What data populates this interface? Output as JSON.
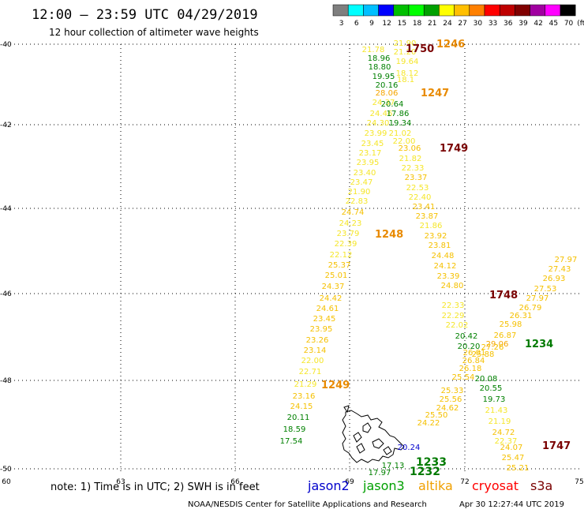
{
  "header": {
    "title": "12:00 – 23:59 UTC 04/29/2019",
    "subtitle": "12 hour collection of altimeter wave heights"
  },
  "colorbar": {
    "colors": [
      "#7f7f7f",
      "#00ffff",
      "#00bfff",
      "#0000ff",
      "#00bf00",
      "#00ff00",
      "#00a000",
      "#ffff00",
      "#ffbf00",
      "#ff8000",
      "#ff0000",
      "#bf0000",
      "#800000",
      "#a000a0",
      "#ff00ff",
      "#000000"
    ],
    "labels": [
      "3",
      "6",
      "9",
      "12",
      "15",
      "18",
      "21",
      "24",
      "27",
      "30",
      "33",
      "36",
      "39",
      "42",
      "45",
      "70"
    ],
    "unit": "(ft)"
  },
  "axes": {
    "lat_labels": [
      "-40",
      "-42",
      "-44",
      "-46",
      "-48",
      "-50"
    ],
    "lon_labels": [
      "60",
      "63",
      "66",
      "69",
      "72",
      "75"
    ]
  },
  "tracks": [
    {
      "id": "1246",
      "satellite": "altika",
      "color": "#f59a00",
      "label_color": "#e88a00",
      "points": [
        [
          "21.90",
          "#f5e62a"
        ],
        [
          "21.20",
          "#f5e62a"
        ],
        [
          "19.64",
          "#f5e62a"
        ],
        [
          "18.12",
          "#f5e62a"
        ],
        [
          "18.1",
          "#f5e62a"
        ]
      ]
    },
    {
      "id": "1750",
      "satellite": "cryosat",
      "color": "#7a0000",
      "points": []
    },
    {
      "id": "1247",
      "satellite": "altika",
      "color": "#e88a00",
      "points": [
        [
          "21.78",
          "#f5e62a"
        ],
        [
          "18.96",
          "#008000"
        ],
        [
          "18.80",
          "#008000"
        ],
        [
          "19.95",
          "#008000"
        ],
        [
          "20.16",
          "#008000"
        ],
        [
          "28.06",
          "#f5a500"
        ],
        [
          "24.37",
          "#f5e62a"
        ],
        [
          "24.46",
          "#f5e62a"
        ],
        [
          "24.30",
          "#f5e62a"
        ],
        [
          "23.99",
          "#f5e62a"
        ],
        [
          "23.45",
          "#f5e62a"
        ],
        [
          "23.17",
          "#f5e62a"
        ],
        [
          "23.95",
          "#f5e62a"
        ],
        [
          "23.40",
          "#f5e62a"
        ],
        [
          "23.47",
          "#f5e62a"
        ],
        [
          "21.90",
          "#f5e62a"
        ],
        [
          "22.83",
          "#f5e62a"
        ],
        [
          "24.74",
          "#f5c000"
        ],
        [
          "24.23",
          "#f5e62a"
        ],
        [
          "23.79",
          "#f5e62a"
        ],
        [
          "22.39",
          "#f5e62a"
        ],
        [
          "22.12",
          "#f5e62a"
        ],
        [
          "25.37",
          "#f5c000"
        ],
        [
          "25.01",
          "#f5c000"
        ],
        [
          "24.37",
          "#f5c000"
        ],
        [
          "24.42",
          "#f5c000"
        ],
        [
          "24.61",
          "#f5c000"
        ],
        [
          "23.45",
          "#f5c000"
        ],
        [
          "23.95",
          "#f5c000"
        ],
        [
          "23.26",
          "#f5c000"
        ],
        [
          "23.14",
          "#f5c000"
        ],
        [
          "22.00",
          "#f5e62a"
        ],
        [
          "22.71",
          "#f5e62a"
        ],
        [
          "21.29",
          "#f5e62a"
        ],
        [
          "23.16",
          "#f5c000"
        ],
        [
          "24.15",
          "#f5c000"
        ],
        [
          "20.11",
          "#008000"
        ],
        [
          "18.59",
          "#008000"
        ],
        [
          "17.54",
          "#008000"
        ]
      ]
    },
    {
      "id": "1248",
      "satellite": "altika",
      "color": "#e88a00",
      "points": []
    },
    {
      "id": "1249",
      "satellite": "altika",
      "color": "#e88a00",
      "points": []
    },
    {
      "id": "1749",
      "satellite": "cryosat",
      "color": "#7a0000",
      "points": [
        [
          "20.64",
          "#008000"
        ],
        [
          "17.86",
          "#008000"
        ],
        [
          "19.34",
          "#008000"
        ],
        [
          "21.02",
          "#f5e62a"
        ],
        [
          "22.00",
          "#f5e62a"
        ],
        [
          "23.06",
          "#f5c000"
        ],
        [
          "21.82",
          "#f5e62a"
        ],
        [
          "22.33",
          "#f5e62a"
        ],
        [
          "23.37",
          "#f5c000"
        ],
        [
          "22.53",
          "#f5e62a"
        ],
        [
          "22.40",
          "#f5e62a"
        ],
        [
          "23.41",
          "#f5c000"
        ],
        [
          "23.87",
          "#f5c000"
        ],
        [
          "21.86",
          "#f5e62a"
        ],
        [
          "23.92",
          "#f5c000"
        ],
        [
          "23.81",
          "#f5c000"
        ],
        [
          "24.48",
          "#f5c000"
        ],
        [
          "24.12",
          "#f5c000"
        ],
        [
          "23.39",
          "#f5c000"
        ],
        [
          "24.80",
          "#f5c000"
        ],
        [
          "22.33",
          "#f5e62a"
        ],
        [
          "22.29",
          "#f5e62a"
        ],
        [
          "22.02",
          "#f5e62a"
        ],
        [
          "20.42",
          "#008000"
        ],
        [
          "20.20",
          "#008000"
        ],
        [
          "26.01",
          "#f5c000"
        ],
        [
          "26.84",
          "#f5c000"
        ],
        [
          "26.18",
          "#f5c000"
        ],
        [
          "25.54",
          "#f5c000"
        ],
        [
          "25.33",
          "#f5c000"
        ],
        [
          "25.56",
          "#f5c000"
        ],
        [
          "24.62",
          "#f5c000"
        ],
        [
          "25.50",
          "#f5c000"
        ],
        [
          "24.22",
          "#f5c000"
        ]
      ]
    },
    {
      "id": "1748",
      "satellite": "cryosat",
      "color": "#7a0000",
      "points": []
    },
    {
      "id": "1234",
      "satellite": "jason3",
      "color": "#007a00",
      "points": [
        [
          "20.08",
          "#008000"
        ],
        [
          "20.55",
          "#008000"
        ],
        [
          "19.73",
          "#008000"
        ],
        [
          "21.43",
          "#f5e62a"
        ],
        [
          "21.19",
          "#f5e62a"
        ],
        [
          "24.72",
          "#f5c000"
        ],
        [
          "22.37",
          "#f5e62a"
        ],
        [
          "24.07",
          "#f5c000"
        ],
        [
          "25.47",
          "#f5c000"
        ],
        [
          "25.21",
          "#f5c000"
        ]
      ]
    },
    {
      "id": "1747",
      "satellite": "cryosat",
      "color": "#7a0000",
      "points": [
        [
          "27.97",
          "#f5c000"
        ],
        [
          "27.43",
          "#f5c000"
        ],
        [
          "26.93",
          "#f5c000"
        ],
        [
          "27.53",
          "#f5c000"
        ],
        [
          "27.97",
          "#f5c000"
        ],
        [
          "26.79",
          "#f5c000"
        ],
        [
          "26.31",
          "#f5c000"
        ],
        [
          "25.98",
          "#f5c000"
        ],
        [
          "26.87",
          "#f5c000"
        ],
        [
          "29.06",
          "#f5a500"
        ],
        [
          "27.26",
          "#f5c000"
        ],
        [
          "25.88",
          "#f5c000"
        ]
      ]
    },
    {
      "id": "1233",
      "satellite": "jason3",
      "color": "#007a00",
      "points": [
        [
          "20.24",
          "#0000cc"
        ],
        [
          "17.13",
          "#008000"
        ],
        [
          "17.97",
          "#008000"
        ]
      ]
    },
    {
      "id": "1232",
      "satellite": "jason3",
      "color": "#007a00",
      "points": []
    }
  ],
  "legend": {
    "note": "note:  1) Time is in UTC; 2) SWH is in feet",
    "items": [
      {
        "label": "jason2",
        "color": "#0000cc"
      },
      {
        "label": "jason3",
        "color": "#00a000"
      },
      {
        "label": "altika",
        "color": "#f0a000"
      },
      {
        "label": "cryosat",
        "color": "#ff0000"
      },
      {
        "label": "s3a",
        "color": "#7a0000"
      }
    ]
  },
  "footer": {
    "credit": "NOAA/NESDIS Center for Satellite Applications and Research",
    "timestamp": "Apr 30 12:27:44 UTC 2019"
  }
}
